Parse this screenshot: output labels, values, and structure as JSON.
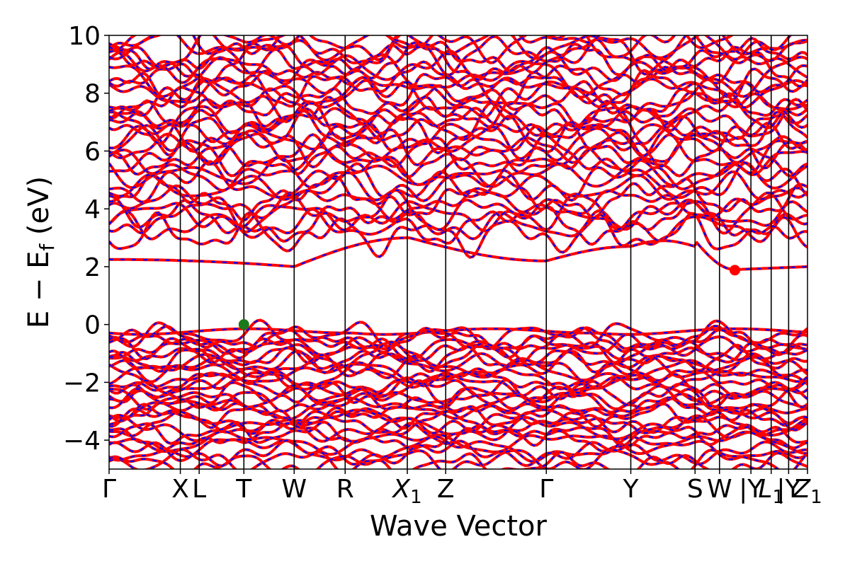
{
  "chart_data": {
    "type": "line",
    "title": "",
    "xlabel": "Wave Vector",
    "ylabel": "E − E_f (eV)",
    "ylabel_parts": {
      "main": "E − E",
      "subscript": "f",
      "unit": " (eV)"
    },
    "ylim": [
      -5,
      10
    ],
    "yticks": [
      -4,
      -2,
      0,
      2,
      4,
      6,
      8,
      10
    ],
    "ytick_labels": [
      "−4",
      "−2",
      "0",
      "2",
      "4",
      "6",
      "8",
      "10"
    ],
    "xlim": [
      0,
      1
    ],
    "kpoints": [
      {
        "label": "Γ",
        "sub": "",
        "pos": 0.0
      },
      {
        "label": "X",
        "sub": "",
        "pos": 0.102
      },
      {
        "label": "L",
        "sub": "",
        "pos": 0.129
      },
      {
        "label": "T",
        "sub": "",
        "pos": 0.193
      },
      {
        "label": "W",
        "sub": "",
        "pos": 0.265
      },
      {
        "label": "R",
        "sub": "",
        "pos": 0.338
      },
      {
        "label": "X",
        "sub": "1",
        "pos": 0.427
      },
      {
        "label": "Z",
        "sub": "",
        "pos": 0.482
      },
      {
        "label": "Γ",
        "sub": "",
        "pos": 0.626
      },
      {
        "label": "Y",
        "sub": "",
        "pos": 0.747
      },
      {
        "label": "S",
        "sub": "",
        "pos": 0.839
      },
      {
        "label": "W",
        "sub": "",
        "pos": 0.874
      },
      {
        "label": "|Y",
        "sub": "",
        "pos": 0.919
      },
      {
        "label": "L",
        "sub": "1",
        "pos": 0.948
      },
      {
        "label": "|Y",
        "sub": "",
        "pos": 0.973
      },
      {
        "label": "Z",
        "sub": "1",
        "pos": 1.0
      }
    ],
    "markers": [
      {
        "name": "VBM",
        "x": 0.193,
        "y": 0.0,
        "color": "#1a7a1a"
      },
      {
        "name": "CBM",
        "x": 0.896,
        "y": 1.88,
        "color": "#ff0000"
      }
    ],
    "series_style": {
      "solid_color": "#ff0000",
      "dashed_color": "#0000ff"
    },
    "band_groups": {
      "valence_tops": [
        0.0,
        -0.35,
        -0.6,
        -0.9,
        -1.2,
        -1.5,
        -1.8,
        -2.1,
        -2.4,
        -2.7,
        -3.0,
        -3.3,
        -3.6,
        -3.9,
        -4.3,
        -4.7
      ],
      "conduction_bottoms": [
        2.0,
        2.9,
        3.3,
        3.7,
        4.2,
        4.7,
        5.2,
        5.6,
        6.0,
        6.4,
        6.8,
        7.2,
        7.6,
        8.0,
        8.4,
        8.8,
        9.2,
        9.6
      ]
    },
    "grid": false,
    "legend": "none"
  }
}
